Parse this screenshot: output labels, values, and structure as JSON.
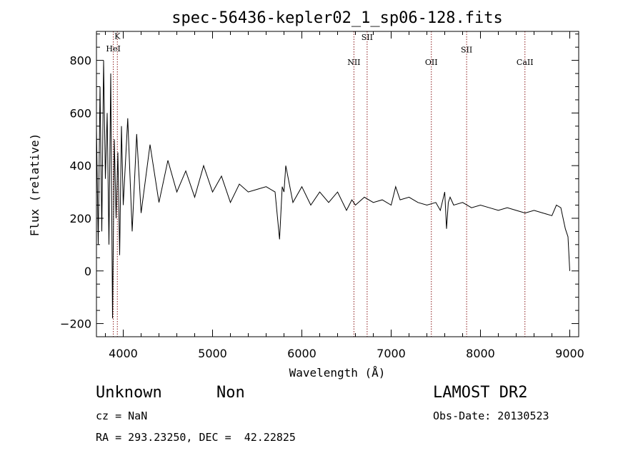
{
  "chart_data": {
    "type": "line",
    "title": "spec-56436-kepler02_1_sp06-128.fits",
    "xlabel": "Wavelength (Å)",
    "ylabel": "Flux (relative)",
    "xlim": [
      3700,
      9100
    ],
    "ylim": [
      -250,
      910
    ],
    "xticks": [
      4000,
      5000,
      6000,
      7000,
      8000,
      9000
    ],
    "yticks": [
      -200,
      0,
      200,
      400,
      600,
      800
    ],
    "grid": false,
    "line_color": "#000000",
    "marker_color": "#8b1a1a",
    "spectral_lines": [
      {
        "label": "K",
        "x": 3934,
        "label_y": 882
      },
      {
        "label": "HeI",
        "x": 3889,
        "label_y": 834
      },
      {
        "label": "NII",
        "x": 6583,
        "label_y": 782
      },
      {
        "label": "SII",
        "x": 6731,
        "label_y": 878
      },
      {
        "label": "OII",
        "x": 7450,
        "label_y": 782
      },
      {
        "label": "SII",
        "x": 7845,
        "label_y": 830
      },
      {
        "label": "CaII",
        "x": 8498,
        "label_y": 782
      }
    ],
    "series": [
      {
        "x": [
          3700,
          3720,
          3740,
          3760,
          3780,
          3800,
          3820,
          3840,
          3860,
          3880,
          3900,
          3920,
          3940,
          3960,
          3980,
          4000,
          4050,
          4100,
          4150,
          4200,
          4300,
          4400,
          4500,
          4600,
          4700,
          4800,
          4900,
          5000,
          5100,
          5200,
          5300,
          5400,
          5500,
          5600,
          5700,
          5750,
          5780,
          5800,
          5820,
          5900,
          6000,
          6100,
          6200,
          6300,
          6400,
          6500,
          6560,
          6600,
          6700,
          6800,
          6900,
          7000,
          7050,
          7100,
          7200,
          7300,
          7400,
          7500,
          7550,
          7600,
          7620,
          7640,
          7660,
          7700,
          7800,
          7900,
          8000,
          8100,
          8200,
          8300,
          8400,
          8500,
          8600,
          8700,
          8800,
          8850,
          8900,
          8950,
          8980,
          9000
        ],
        "y": [
          550,
          100,
          700,
          150,
          800,
          350,
          600,
          100,
          750,
          -180,
          500,
          200,
          450,
          60,
          550,
          250,
          580,
          150,
          520,
          220,
          480,
          260,
          420,
          300,
          380,
          280,
          400,
          300,
          360,
          260,
          330,
          300,
          310,
          320,
          300,
          120,
          320,
          300,
          400,
          260,
          320,
          250,
          300,
          260,
          300,
          230,
          270,
          250,
          280,
          260,
          270,
          250,
          320,
          270,
          280,
          260,
          250,
          260,
          230,
          300,
          160,
          260,
          280,
          250,
          260,
          240,
          250,
          240,
          230,
          240,
          230,
          220,
          230,
          220,
          210,
          250,
          240,
          160,
          130,
          0
        ]
      }
    ]
  },
  "info": {
    "object_class": "Unknown",
    "subclass": "Non",
    "redshift": "cz = NaN",
    "coordinates": "RA = 293.23250, DEC =  42.22825",
    "survey": "LAMOST DR2",
    "obs_date": "Obs-Date: 20130523"
  }
}
